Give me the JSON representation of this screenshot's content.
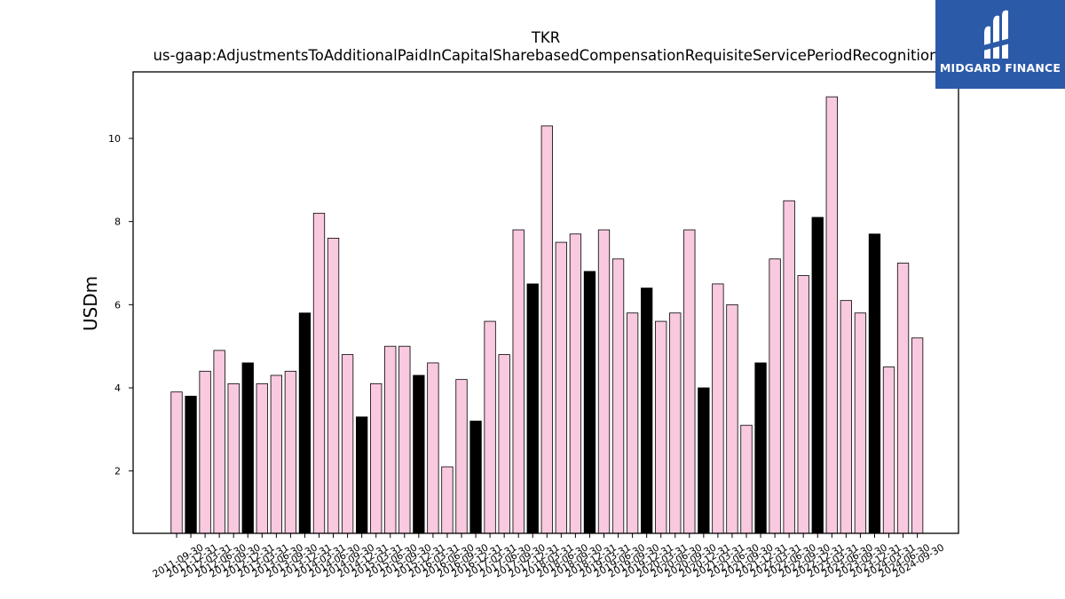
{
  "chart_data": {
    "type": "bar",
    "title": "TKR",
    "subtitle": "us-gaap:AdjustmentsToAdditionalPaidInCapitalSharebasedCompensationRequisiteServicePeriodRecognition",
    "xlabel": "",
    "ylabel": "USDm",
    "ylim": [
      0.5,
      11.6
    ],
    "yticks": [
      2,
      4,
      6,
      8,
      10
    ],
    "grid": false,
    "colors": {
      "quarter": "#f9c9e0",
      "year_end": "#000000",
      "edge": "#000000"
    },
    "categories": [
      "2011-09-30",
      "2011-12-31",
      "2012-03-31",
      "2012-06-30",
      "2012-09-30",
      "2012-12-31",
      "2013-03-31",
      "2013-06-30",
      "2013-09-30",
      "2013-12-31",
      "2014-03-31",
      "2014-06-30",
      "2014-09-30",
      "2014-12-31",
      "2015-03-31",
      "2015-06-30",
      "2015-09-30",
      "2015-12-31",
      "2016-03-31",
      "2016-06-30",
      "2016-09-30",
      "2016-12-31",
      "2017-03-31",
      "2017-06-30",
      "2017-09-30",
      "2017-12-31",
      "2018-03-31",
      "2018-06-30",
      "2018-09-30",
      "2018-12-31",
      "2019-03-31",
      "2019-06-30",
      "2019-09-30",
      "2019-12-31",
      "2020-03-31",
      "2020-06-30",
      "2020-09-30",
      "2020-12-31",
      "2021-03-31",
      "2021-06-30",
      "2021-09-30",
      "2021-12-31",
      "2022-03-31",
      "2022-06-30",
      "2022-09-30",
      "2022-12-31",
      "2023-03-31",
      "2023-06-30",
      "2023-09-30",
      "2023-12-31",
      "2024-03-31",
      "2024-06-30",
      "2024-09-30"
    ],
    "values": [
      3.9,
      3.8,
      4.4,
      4.9,
      4.1,
      4.6,
      4.1,
      4.3,
      4.4,
      5.8,
      8.2,
      7.6,
      4.8,
      3.3,
      4.1,
      5.0,
      5.0,
      4.3,
      4.6,
      2.1,
      4.2,
      3.2,
      5.6,
      4.8,
      7.8,
      6.5,
      10.3,
      7.5,
      7.7,
      6.8,
      7.8,
      7.1,
      5.8,
      6.4,
      5.6,
      5.8,
      7.8,
      4.0,
      6.5,
      6.0,
      3.1,
      4.6,
      7.1,
      8.5,
      6.7,
      8.1,
      11.0,
      6.1,
      5.8,
      7.7,
      4.5,
      7.0,
      5.2
    ],
    "highlight": [
      false,
      true,
      false,
      false,
      false,
      true,
      false,
      false,
      false,
      true,
      false,
      false,
      false,
      true,
      false,
      false,
      false,
      true,
      false,
      false,
      false,
      true,
      false,
      false,
      false,
      true,
      false,
      false,
      false,
      true,
      false,
      false,
      false,
      true,
      false,
      false,
      false,
      true,
      false,
      false,
      false,
      true,
      false,
      false,
      false,
      true,
      false,
      false,
      false,
      true,
      false,
      false,
      false
    ]
  },
  "logo": {
    "text": "MIDGARD FINANCE",
    "icon": "midgard-logo-icon",
    "color": "#2b5aa8"
  }
}
